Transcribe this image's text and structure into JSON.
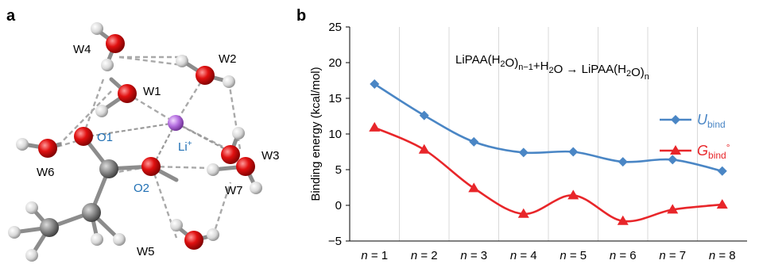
{
  "panel_a": {
    "label": "a",
    "water_labels": [
      "W1",
      "W2",
      "W3",
      "W4",
      "W5",
      "W6",
      "W7"
    ],
    "oxygen_labels": [
      "O1",
      "O2"
    ],
    "ion_label": "Li",
    "ion_charge": "+",
    "label_color_dark": "#000000",
    "label_color_blue": "#1f6fb4"
  },
  "panel_b": {
    "label": "b"
  },
  "chart_data": {
    "type": "line",
    "categories": [
      "n = 1",
      "n = 2",
      "n = 3",
      "n = 4",
      "n = 5",
      "n = 6",
      "n = 7",
      "n = 8"
    ],
    "x_var": "n",
    "x_values": [
      "1",
      "2",
      "3",
      "4",
      "5",
      "6",
      "7",
      "8"
    ],
    "ylabel": "Binding energy (kcal/mol)",
    "ylim": [
      -5,
      25
    ],
    "yticks": [
      -5,
      0,
      5,
      10,
      15,
      20,
      25
    ],
    "grid": "vertical",
    "legend_position": "right",
    "annotation": {
      "parts": [
        "LiPAA(H",
        "2",
        "O)",
        "n−1",
        "+H",
        "2",
        "O → LiPAA(H",
        "2",
        "O)",
        "n"
      ]
    },
    "series": [
      {
        "name_main": "U",
        "name_sub": "bind",
        "name_sup": "",
        "color": "#4a86c5",
        "marker": "diamond",
        "values": [
          17.0,
          12.6,
          8.9,
          7.4,
          7.5,
          6.1,
          6.4,
          4.8
        ]
      },
      {
        "name_main": "G",
        "name_sub": "bind",
        "name_sup": "°",
        "color": "#e8262a",
        "marker": "triangle",
        "values": [
          10.9,
          7.8,
          2.4,
          -1.2,
          1.4,
          -2.2,
          -0.6,
          0.1
        ]
      }
    ]
  }
}
